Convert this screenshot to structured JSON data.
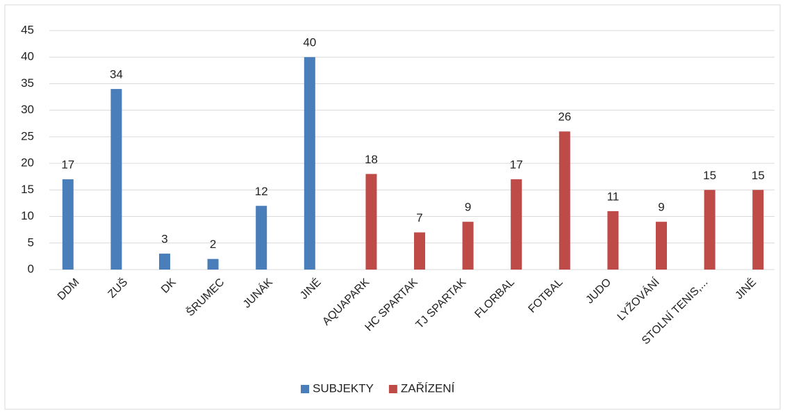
{
  "chart_data": {
    "type": "bar",
    "categories": [
      "DDM",
      "ZUŠ",
      "DK",
      "ŠRUMEC",
      "JUNÁK",
      "JINÉ",
      "AQUAPARK",
      "HC SPARTAK",
      "TJ SPARTAK",
      "FLORBAL",
      "FOTBAL",
      "JUDO",
      "LYŽOVÁNÍ",
      "STOLNÍ TENIS,...",
      "JINÉ"
    ],
    "series": [
      {
        "name": "SUBJEKTY",
        "color": "#4a7ebb",
        "values": [
          17,
          34,
          3,
          2,
          12,
          40,
          null,
          null,
          null,
          null,
          null,
          null,
          null,
          null,
          null
        ]
      },
      {
        "name": "ZAŘÍZENÍ",
        "color": "#be4b48",
        "values": [
          null,
          null,
          null,
          null,
          null,
          null,
          18,
          7,
          9,
          17,
          26,
          11,
          9,
          15,
          15
        ]
      }
    ],
    "ylim": [
      0,
      45
    ],
    "yticks": [
      0,
      5,
      10,
      15,
      20,
      25,
      30,
      35,
      40,
      45
    ],
    "grid": true,
    "legend": "bottom"
  }
}
